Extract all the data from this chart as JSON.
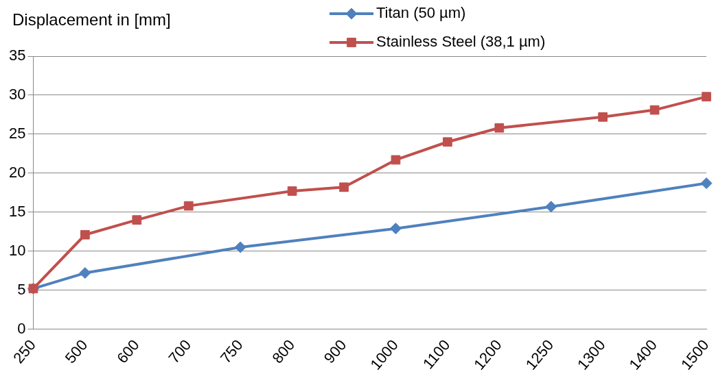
{
  "chart_data": {
    "type": "line",
    "ylabel": "Displacement in [mm]",
    "categories": [
      "250",
      "500",
      "600",
      "700",
      "750",
      "800",
      "900",
      "1000",
      "1100",
      "1200",
      "1250",
      "1300",
      "1400",
      "1500"
    ],
    "series": [
      {
        "name": "Titan (50 µm)",
        "color": "#4f81bd",
        "marker": "diamond",
        "values": [
          5.2,
          7.2,
          null,
          null,
          10.5,
          null,
          null,
          12.9,
          null,
          null,
          15.7,
          null,
          null,
          18.7
        ]
      },
      {
        "name": "Stainless Steel (38,1 µm)",
        "color": "#c0504d",
        "marker": "square",
        "values": [
          5.2,
          12.1,
          14.0,
          15.8,
          null,
          17.7,
          18.2,
          21.7,
          24.0,
          25.8,
          null,
          27.2,
          28.1,
          29.8
        ]
      }
    ],
    "ylim": [
      0,
      35
    ],
    "yticks": [
      0,
      5,
      10,
      15,
      20,
      25,
      30,
      35
    ],
    "grid": "y",
    "legend": "top right",
    "line_style": "solid"
  }
}
